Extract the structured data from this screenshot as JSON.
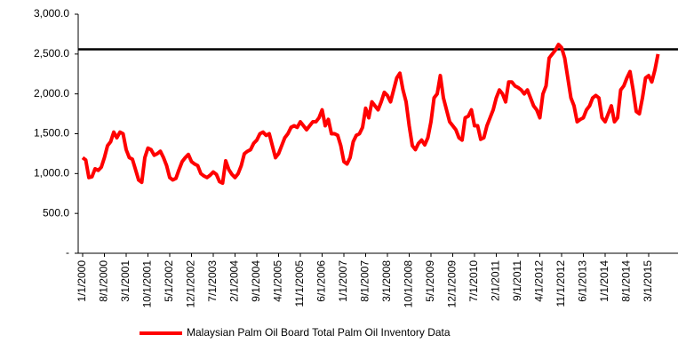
{
  "chart_data": {
    "type": "line",
    "categories": [
      "1/1/2000",
      null,
      null,
      null,
      null,
      null,
      null,
      "8/1/2000",
      null,
      null,
      null,
      null,
      null,
      null,
      "3/1/2001",
      null,
      null,
      null,
      null,
      null,
      null,
      "10/1/2001",
      null,
      null,
      null,
      null,
      null,
      null,
      "5/1/2002",
      null,
      null,
      null,
      null,
      null,
      null,
      "12/1/2002",
      null,
      null,
      null,
      null,
      null,
      null,
      "7/1/2003",
      null,
      null,
      null,
      null,
      null,
      null,
      "2/1/2004",
      null,
      null,
      null,
      null,
      null,
      null,
      "9/1/2004",
      null,
      null,
      null,
      null,
      null,
      null,
      "4/1/2005",
      null,
      null,
      null,
      null,
      null,
      null,
      "11/1/2005",
      null,
      null,
      null,
      null,
      null,
      null,
      "6/1/2006",
      null,
      null,
      null,
      null,
      null,
      null,
      "1/1/2007",
      null,
      null,
      null,
      null,
      null,
      null,
      "8/1/2007",
      null,
      null,
      null,
      null,
      null,
      null,
      "3/1/2008",
      null,
      null,
      null,
      null,
      null,
      null,
      "10/1/2008",
      null,
      null,
      null,
      null,
      null,
      null,
      "5/1/2009",
      null,
      null,
      null,
      null,
      null,
      null,
      "12/1/2009",
      null,
      null,
      null,
      null,
      null,
      null,
      "7/1/2010",
      null,
      null,
      null,
      null,
      null,
      null,
      "2/1/2011",
      null,
      null,
      null,
      null,
      null,
      null,
      "9/1/2011",
      null,
      null,
      null,
      null,
      null,
      null,
      "4/1/2012",
      null,
      null,
      null,
      null,
      null,
      null,
      "11/1/2012",
      null,
      null,
      null,
      null,
      null,
      null,
      "6/1/2013",
      null,
      null,
      null,
      null,
      null,
      null,
      "1/1/2014",
      null,
      null,
      null,
      null,
      null,
      null,
      "8/1/2014",
      null,
      null,
      null,
      null,
      null,
      null,
      "3/1/2015",
      null,
      null,
      null
    ],
    "series": [
      {
        "name": "Malaysian Palm Oil Board Total Palm Oil Inventory Data",
        "color": "#ff0000",
        "values": [
          1200,
          1170,
          950,
          960,
          1060,
          1040,
          1080,
          1200,
          1350,
          1400,
          1520,
          1450,
          1520,
          1500,
          1300,
          1200,
          1180,
          1050,
          920,
          890,
          1200,
          1320,
          1300,
          1230,
          1250,
          1280,
          1200,
          1100,
          950,
          920,
          940,
          1050,
          1150,
          1200,
          1240,
          1150,
          1120,
          1100,
          1000,
          970,
          950,
          980,
          1020,
          990,
          900,
          880,
          1160,
          1050,
          990,
          950,
          1000,
          1100,
          1250,
          1280,
          1300,
          1380,
          1420,
          1500,
          1520,
          1480,
          1500,
          1350,
          1200,
          1250,
          1350,
          1450,
          1500,
          1580,
          1600,
          1580,
          1650,
          1600,
          1550,
          1600,
          1650,
          1650,
          1700,
          1800,
          1600,
          1680,
          1500,
          1500,
          1480,
          1350,
          1150,
          1120,
          1200,
          1400,
          1480,
          1500,
          1580,
          1820,
          1700,
          1900,
          1850,
          1800,
          1900,
          2020,
          1980,
          1900,
          2050,
          2200,
          2260,
          2050,
          1900,
          1600,
          1350,
          1300,
          1380,
          1420,
          1360,
          1450,
          1650,
          1950,
          2000,
          2230,
          1950,
          1800,
          1650,
          1600,
          1550,
          1450,
          1420,
          1700,
          1720,
          1800,
          1600,
          1600,
          1430,
          1450,
          1600,
          1700,
          1800,
          1950,
          2050,
          2000,
          1900,
          2150,
          2150,
          2100,
          2080,
          2050,
          2000,
          2050,
          1950,
          1850,
          1800,
          1700,
          2000,
          2100,
          2450,
          2500,
          2550,
          2620,
          2580,
          2450,
          2200,
          1950,
          1850,
          1650,
          1680,
          1700,
          1800,
          1850,
          1950,
          1980,
          1950,
          1700,
          1650,
          1750,
          1850,
          1650,
          1700,
          2050,
          2100,
          2200,
          2280,
          2050,
          1780,
          1750,
          1950,
          2200,
          2230,
          2150,
          2300,
          2500
        ]
      }
    ],
    "reference_line": 2560,
    "reference_color": "#000000",
    "ylim": [
      0,
      3000
    ],
    "yticks": [
      {
        "value": 0,
        "label": "-"
      },
      {
        "value": 500,
        "label": "500.0"
      },
      {
        "value": 1000,
        "label": "1,000.0"
      },
      {
        "value": 1500,
        "label": "1,500.0"
      },
      {
        "value": 2000,
        "label": "2,000.0"
      },
      {
        "value": 2500,
        "label": "2,500.0"
      },
      {
        "value": 3000,
        "label": "3,000.0"
      }
    ],
    "grid": false,
    "legend": "bottom"
  }
}
